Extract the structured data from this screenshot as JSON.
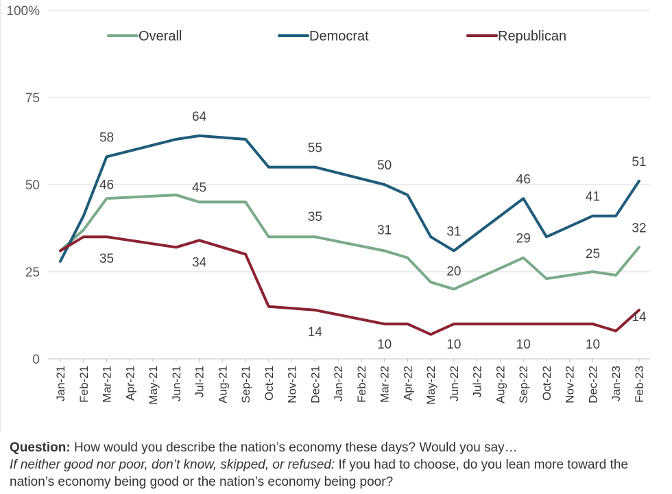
{
  "chart_data": {
    "type": "line",
    "categories": [
      "Jan-21",
      "Feb-21",
      "Mar-21",
      "Apr-21",
      "May-21",
      "Jun-21",
      "Jul-21",
      "Aug-21",
      "Sep-21",
      "Oct-21",
      "Nov-21",
      "Dec-21",
      "Jan-22",
      "Feb-22",
      "Mar-22",
      "Apr-22",
      "May-22",
      "Jun-22",
      "Jul-22",
      "Aug-22",
      "Sep-22",
      "Oct-22",
      "Nov-22",
      "Dec-22",
      "Jan-23",
      "Feb-23"
    ],
    "ylim": [
      0,
      100
    ],
    "yticks": [
      0,
      25,
      50,
      75,
      100
    ],
    "ytick_labels": [
      "0",
      "25",
      "50",
      "75",
      "100%"
    ],
    "grid": true,
    "legend_position": "top",
    "series": [
      {
        "name": "Overall",
        "color": "#7aab8a",
        "values": [
          31,
          37,
          46,
          null,
          null,
          47,
          45,
          null,
          45,
          35,
          null,
          35,
          null,
          null,
          31,
          29,
          22,
          20,
          null,
          null,
          29,
          23,
          null,
          25,
          24,
          32
        ],
        "labeled_points": [
          2,
          6,
          11,
          14,
          17,
          20,
          23,
          25
        ]
      },
      {
        "name": "Democrat",
        "color": "#1e5c7a",
        "values": [
          28,
          41,
          58,
          null,
          null,
          63,
          64,
          null,
          63,
          55,
          55,
          55,
          null,
          null,
          50,
          47,
          35,
          31,
          null,
          null,
          46,
          35,
          null,
          41,
          41,
          51
        ],
        "labeled_points": [
          2,
          6,
          11,
          14,
          17,
          20,
          23,
          25
        ]
      },
      {
        "name": "Republican",
        "color": "#8b2332",
        "values": [
          31,
          35,
          35,
          null,
          null,
          32,
          34,
          null,
          30,
          15,
          null,
          14,
          null,
          null,
          10,
          10,
          7,
          10,
          null,
          null,
          10,
          10,
          null,
          10,
          8,
          14
        ],
        "labeled_points": [
          2,
          6,
          11,
          14,
          17,
          20,
          23,
          25
        ]
      }
    ]
  },
  "question": {
    "label": "Question:",
    "text": " How would you describe the nation’s economy these days? Would you say…",
    "followup_label": "If neither good nor poor, don’t know, skipped, or refused:",
    "followup_text": " If you had to choose, do you lean more toward the nation’s economy being good or the nation’s economy being poor?"
  }
}
